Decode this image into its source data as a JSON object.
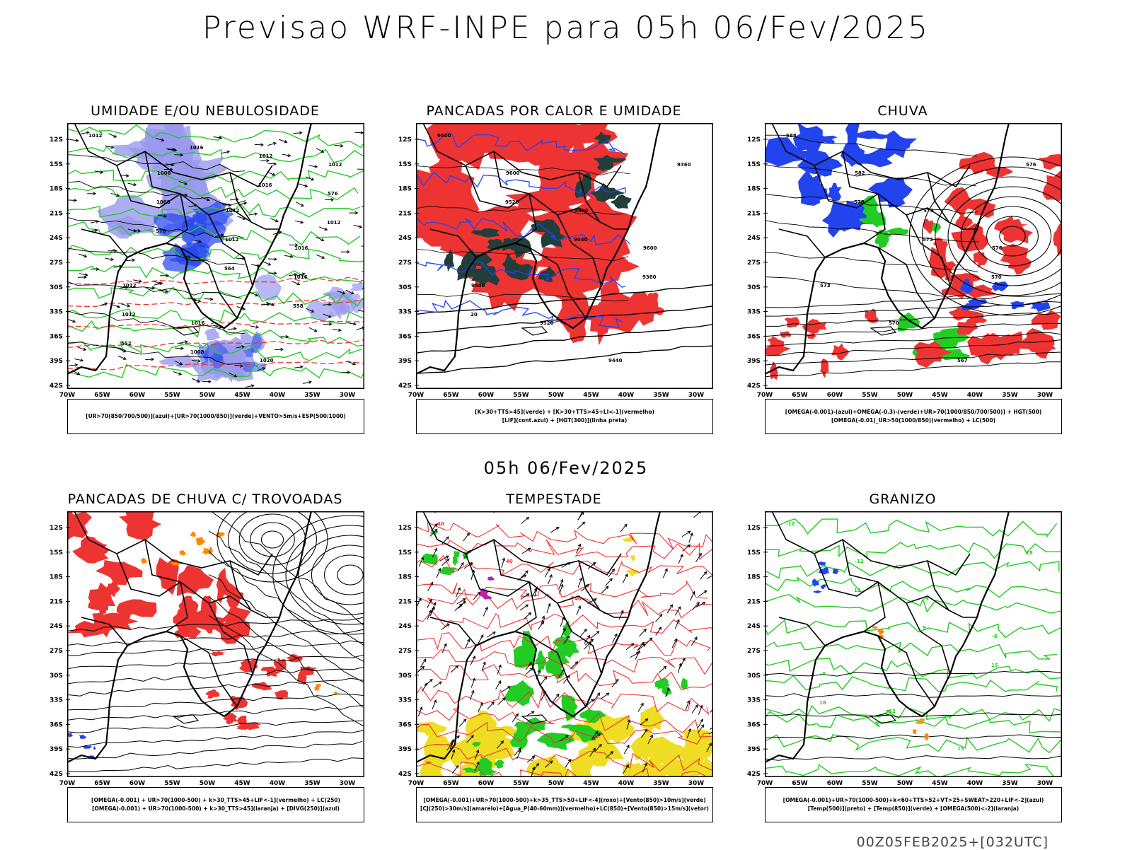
{
  "header": {
    "title": "Previsao WRF-INPE  para 05h 06/Fev/2025"
  },
  "subtitle": "05h 06/Fev/2025",
  "footer": "00Z05FEB2025+[032UTC]",
  "axes": {
    "lat_labels": [
      "12S",
      "15S",
      "18S",
      "21S",
      "24S",
      "27S",
      "30S",
      "33S",
      "36S",
      "39S",
      "42S"
    ],
    "lon_labels": [
      "70W",
      "65W",
      "60W",
      "55W",
      "50W",
      "45W",
      "40W",
      "35W",
      "30W"
    ]
  },
  "colors": {
    "green": "#22cc22",
    "red": "#ee3333",
    "blue": "#2244ee",
    "lightblue": "#9999ee",
    "orange": "#ff8800",
    "yellow": "#eedd22",
    "darkgreen": "#223e3a",
    "purple": "#aa22cc"
  },
  "panels": [
    {
      "id": "umidade",
      "title": "UMIDADE E/OU NEBULOSIDADE",
      "caption_lines": [
        "[UR>70(850/700/500)](azul)+[UR>70(1000/850)](verde)+VENTO>5m/s+ESP(500/1000)"
      ],
      "contour_labels": [
        "1012",
        "1008",
        "1012",
        "1016",
        "1012",
        "1016",
        "1020",
        "1012",
        "1008",
        "1012",
        "1016",
        "1012",
        "1008",
        "1012",
        "576",
        "570",
        "564",
        "558",
        "552",
        "1016",
        "1016",
        "1012"
      ]
    },
    {
      "id": "pancadas-calor",
      "title": "PANCADAS POR CALOR E UMIDADE",
      "caption_lines": [
        "[K>30+TTS>45](verde) + [K>30+TTS>45+LI<-1](vermelho)",
        "[LIF](cont.azul) + [HGT(300)](linha preta)"
      ],
      "contour_labels": [
        "9600",
        "9600",
        "9600",
        "9600",
        "9600",
        "9520",
        "9440",
        "9360",
        "9520",
        "9440",
        "9360",
        "20"
      ]
    },
    {
      "id": "chuva",
      "title": "CHUVA",
      "caption_lines": [
        "[OMEGA(-0.001)-(azul)+OMEGA(-0.3)-(verde)+UR>70(1000/850/700/500)] + HGT(500)",
        "[OMEGA(-0.01)_UR>50(1000/850)(vermelho) + LC(500)"
      ],
      "contour_labels": [
        "588",
        "582",
        "579",
        "576",
        "573",
        "570",
        "567",
        "576",
        "579",
        "573",
        "570"
      ]
    },
    {
      "id": "pancadas-trovoadas",
      "title": "PANCADAS DE CHUVA C/ TROVOADAS",
      "caption_lines": [
        "[OMEGA(-0.001) + UR>70(1000-500) + k>30_TTS>45+LIF<-1](vermelho) + LC(250)",
        "[OMEGA(-0.001) + UR>70(1000-500) + k>30_TTS>45](laranja) + [DIVG(250)](azul)"
      ],
      "contour_labels": []
    },
    {
      "id": "tempestade",
      "title": "TEMPESTADE",
      "caption_lines": [
        "[OMEGA(-0.001)+UR>70(1000-500)+k>35_TTS>50+LIF<-4](roxo)+[Vento(850)>10m/s](verde)",
        "[CJ(250)>30m/s](amarelo)+[Agua_P(40-60mm)](vermelho)+LC(850)+[Vento(850)>15m/s](vetor)"
      ],
      "contour_labels": [
        "40",
        "40",
        "40"
      ]
    },
    {
      "id": "granizo",
      "title": "GRANIZO",
      "caption_lines": [
        "[OMEGA(-0.001)+UR>70(1000-500)+k<60+TTS>52+VT>25+SWEAT>220+LIF<-2](azul)",
        "[Temp(500)](preto) + [Temp(850)](verde) + [OMEGA(500)<-2](laranja)"
      ],
      "contour_labels": [
        "-12",
        "-12",
        "-9",
        "-6",
        "-3",
        "12",
        "15",
        "18",
        "12",
        "9",
        "15",
        "18"
      ]
    }
  ]
}
